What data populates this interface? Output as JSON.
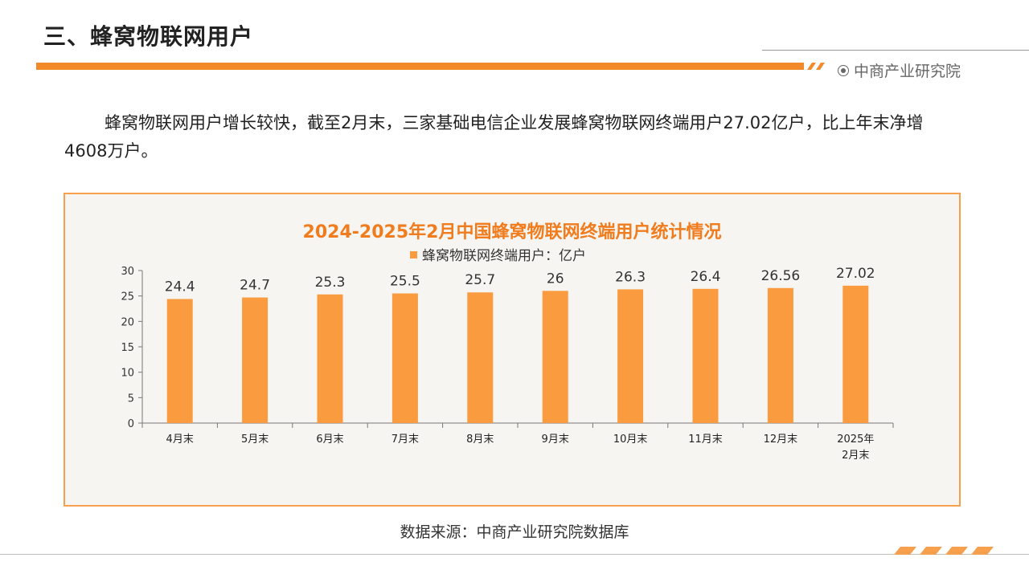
{
  "header": {
    "title": "三、蜂窝物联网用户",
    "brand": "中商产业研究院"
  },
  "paragraph": "蜂窝物联网用户增长较快，截至2月末，三家基础电信企业发展蜂窝物联网终端用户27.02亿户，比上年末净增4608万户。",
  "source": "数据来源：中商产业研究院数据库",
  "colors": {
    "accent": "#f28a2a",
    "bar": "#f99b3e",
    "title": "#f07c1e"
  },
  "icons": [
    "brand-circle-icon"
  ],
  "chart_data": {
    "type": "bar",
    "title": "2024-2025年2月中国蜂窝物联网终端用户统计情况",
    "categories": [
      [
        "4月末"
      ],
      [
        "5月末"
      ],
      [
        "6月末"
      ],
      [
        "7月末"
      ],
      [
        "8月末"
      ],
      [
        "9月末"
      ],
      [
        "10月末"
      ],
      [
        "11月末"
      ],
      [
        "12月末"
      ],
      [
        "2025年",
        "2月末"
      ]
    ],
    "series": [
      {
        "name": "蜂窝物联网终端用户：亿户",
        "values": [
          24.4,
          24.7,
          25.3,
          25.5,
          25.7,
          26,
          26.3,
          26.4,
          26.56,
          27.02
        ]
      }
    ],
    "data_labels": [
      "24.4",
      "24.7",
      "25.3",
      "25.5",
      "25.7",
      "26",
      "26.3",
      "26.4",
      "26.56",
      "27.02"
    ],
    "yticks": [
      0,
      5,
      10,
      15,
      20,
      25,
      30
    ],
    "ylim": [
      0,
      30
    ],
    "grid": false,
    "legend_position": "top-center"
  }
}
